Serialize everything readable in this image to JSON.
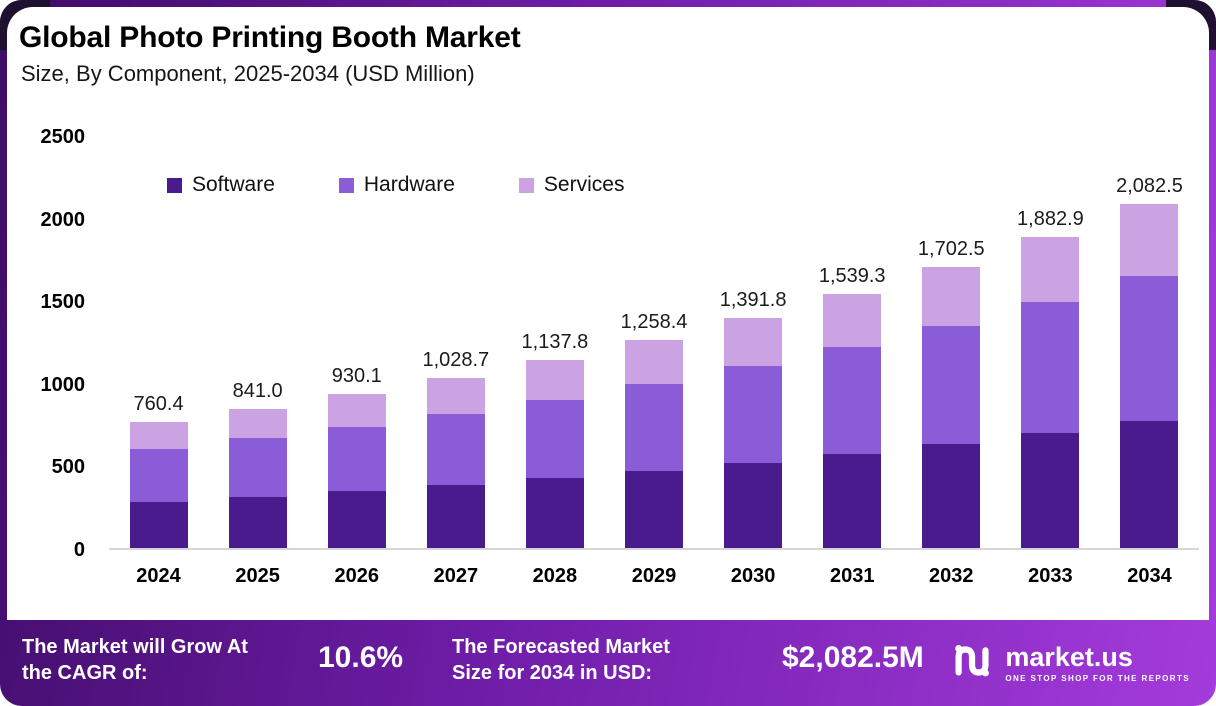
{
  "header": {
    "title": "Global Photo Printing Booth Market",
    "subtitle": "Size, By Component, 2025-2034 (USD Million)"
  },
  "legend": [
    {
      "label": "Software",
      "color": "#4A1B8C"
    },
    {
      "label": "Hardware",
      "color": "#8A5CD8"
    },
    {
      "label": "Services",
      "color": "#CBA3E3"
    }
  ],
  "chart_data": {
    "type": "bar",
    "stacked": true,
    "title": "Global Photo Printing Booth Market Size, By Component, 2025-2034 (USD Million)",
    "categories": [
      2024,
      2025,
      2026,
      2027,
      2028,
      2029,
      2030,
      2031,
      2032,
      2033,
      2034
    ],
    "series": [
      {
        "name": "Software",
        "color": "#4A1B8C",
        "values": [
          281.3,
          311.2,
          344.1,
          380.6,
          421.0,
          465.6,
          515.0,
          569.5,
          629.9,
          696.7,
          770.5
        ]
      },
      {
        "name": "Hardware",
        "color": "#8A5CD8",
        "values": [
          319.4,
          353.2,
          390.6,
          432.1,
          477.9,
          528.5,
          584.6,
          646.5,
          715.1,
          790.8,
          874.7
        ]
      },
      {
        "name": "Services",
        "color": "#CBA3E3",
        "values": [
          159.7,
          176.6,
          195.4,
          216.0,
          238.9,
          264.3,
          292.2,
          323.3,
          357.5,
          395.4,
          437.3
        ]
      }
    ],
    "totals": [
      760.4,
      841.0,
      930.1,
      1028.7,
      1137.8,
      1258.4,
      1391.8,
      1539.3,
      1702.5,
      1882.9,
      2082.5
    ],
    "total_labels": [
      "760.4",
      "841.0",
      "930.1",
      "1,028.7",
      "1,137.8",
      "1,258.4",
      "1,391.8",
      "1,539.3",
      "1,702.5",
      "1,882.9",
      "2,082.5"
    ],
    "xlabel": "",
    "ylabel": "",
    "ylim": [
      0,
      2500
    ],
    "yticks": [
      0,
      500,
      1000,
      1500,
      2000,
      2500
    ],
    "grid": false,
    "legend_position": "upper-left-inside"
  },
  "footer": {
    "cagr_label": "The Market will Grow At the CAGR of:",
    "cagr_value": "10.6%",
    "forecast_label": "The Forecasted Market Size for 2034 in USD:",
    "forecast_value": "$2,082.5M",
    "brand": "market.us",
    "tagline": "ONE STOP SHOP FOR THE REPORTS"
  },
  "colors": {
    "frame_gradient_start": "#3E0C66",
    "frame_gradient_mid": "#6F1DA8",
    "frame_gradient_end": "#A43BDC",
    "corner_square": "#201030",
    "panel_background": "#ffffff",
    "baseline": "#d6d6d6"
  }
}
